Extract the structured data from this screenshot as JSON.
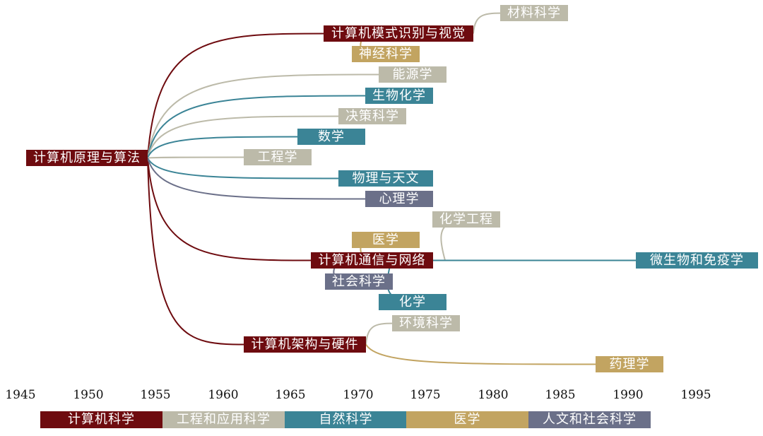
{
  "colors": {
    "cs": "#6e0b0f",
    "eng": "#bcbaa9",
    "nat": "#3b8496",
    "med": "#c2a461",
    "hum": "#6b7089"
  },
  "nodes": {
    "algo": {
      "label": "计算机原理与算法",
      "cat": "cs"
    },
    "vision": {
      "label": "计算机模式识别与视觉",
      "cat": "cs"
    },
    "network": {
      "label": "计算机通信与网络",
      "cat": "cs"
    },
    "arch": {
      "label": "计算机架构与硬件",
      "cat": "cs"
    },
    "materials": {
      "label": "材料科学",
      "cat": "eng"
    },
    "neuro": {
      "label": "神经科学",
      "cat": "med"
    },
    "energy": {
      "label": "能源学",
      "cat": "eng"
    },
    "biochem": {
      "label": "生物化学",
      "cat": "nat"
    },
    "decision": {
      "label": "决策科学",
      "cat": "eng"
    },
    "math": {
      "label": "数学",
      "cat": "nat"
    },
    "engineering": {
      "label": "工程学",
      "cat": "eng"
    },
    "physics": {
      "label": "物理与天文",
      "cat": "nat"
    },
    "psych": {
      "label": "心理学",
      "cat": "hum"
    },
    "chemeng": {
      "label": "化学工程",
      "cat": "eng"
    },
    "medicine": {
      "label": "医学",
      "cat": "med"
    },
    "microbio": {
      "label": "微生物和免疫学",
      "cat": "nat"
    },
    "social": {
      "label": "社会科学",
      "cat": "hum"
    },
    "chem": {
      "label": "化学",
      "cat": "nat"
    },
    "envsci": {
      "label": "环境科学",
      "cat": "eng"
    },
    "pharma": {
      "label": "药理学",
      "cat": "med"
    }
  },
  "edges": [
    {
      "from": "algo",
      "to": "vision"
    },
    {
      "from": "algo",
      "to": "network"
    },
    {
      "from": "algo",
      "to": "arch"
    },
    {
      "from": "algo",
      "to": "energy"
    },
    {
      "from": "algo",
      "to": "biochem"
    },
    {
      "from": "algo",
      "to": "decision"
    },
    {
      "from": "algo",
      "to": "math"
    },
    {
      "from": "algo",
      "to": "engineering"
    },
    {
      "from": "algo",
      "to": "physics"
    },
    {
      "from": "algo",
      "to": "psych"
    },
    {
      "from": "vision",
      "to": "materials"
    },
    {
      "from": "vision",
      "to": "neuro"
    },
    {
      "from": "network",
      "to": "chemeng"
    },
    {
      "from": "network",
      "to": "medicine"
    },
    {
      "from": "network",
      "to": "microbio"
    },
    {
      "from": "network",
      "to": "social"
    },
    {
      "from": "network",
      "to": "chem"
    },
    {
      "from": "arch",
      "to": "envsci"
    },
    {
      "from": "arch",
      "to": "pharma"
    }
  ],
  "timeline": {
    "years": [
      "1945",
      "1950",
      "1955",
      "1960",
      "1965",
      "1970",
      "1975",
      "1980",
      "1985",
      "1990",
      "1995"
    ]
  },
  "legend": [
    {
      "label": "计算机科学",
      "cat": "cs"
    },
    {
      "label": "工程和应用科学",
      "cat": "eng"
    },
    {
      "label": "自然科学",
      "cat": "nat"
    },
    {
      "label": "医学",
      "cat": "med"
    },
    {
      "label": "人文和社会科学",
      "cat": "hum"
    }
  ]
}
